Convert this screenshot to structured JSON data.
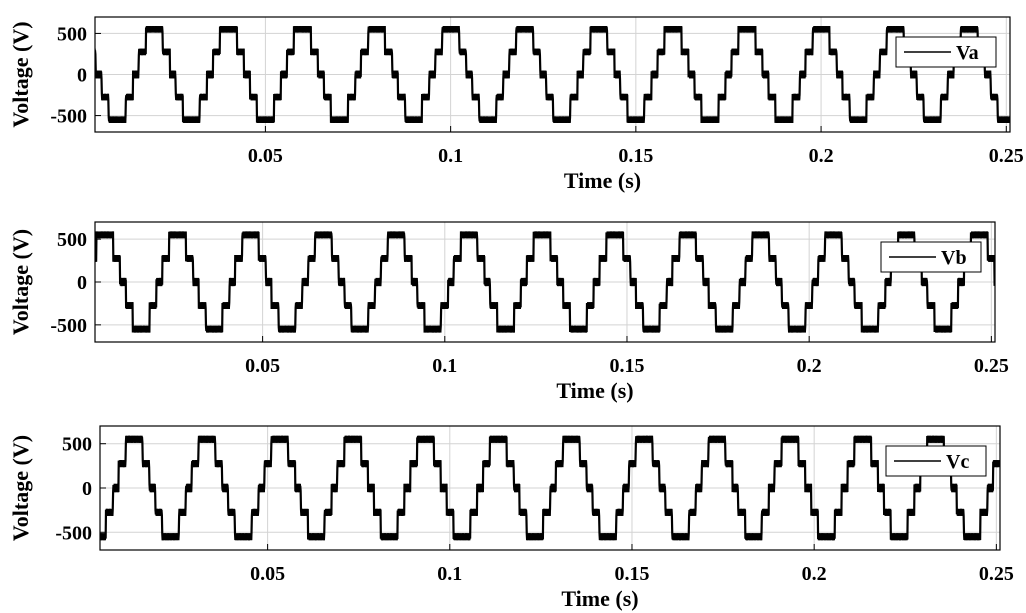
{
  "chart_data": [
    {
      "type": "line",
      "xlabel": "Time (s)",
      "ylabel": "Voltage (V)",
      "xlim": [
        0.004,
        0.251
      ],
      "ylim": [
        -700,
        700
      ],
      "xticks": [
        0.05,
        0.1,
        0.15,
        0.2,
        0.25
      ],
      "xtick_labels": [
        "0.05",
        "0.1",
        "0.15",
        "0.2",
        "0.25"
      ],
      "yticks": [
        500,
        0,
        -500
      ],
      "ytick_labels": [
        "500",
        "0",
        "-500"
      ],
      "grid": true,
      "legend": "top-right",
      "waveform": {
        "fundamental_hz": 50,
        "phase_deg": 90,
        "levels_v": [
          0,
          275,
          550
        ],
        "switching_band_v": 80
      },
      "series": [
        {
          "name": "Va",
          "color": "#000000"
        }
      ]
    },
    {
      "type": "line",
      "xlabel": "Time (s)",
      "ylabel": "Voltage (V)",
      "xlim": [
        0.004,
        0.251
      ],
      "ylim": [
        -700,
        700
      ],
      "xticks": [
        0.05,
        0.1,
        0.15,
        0.2,
        0.25
      ],
      "xtick_labels": [
        "0.05",
        "0.1",
        "0.15",
        "0.2",
        "0.25"
      ],
      "yticks": [
        500,
        0,
        -500
      ],
      "ytick_labels": [
        "500",
        "0",
        "-500"
      ],
      "grid": true,
      "legend": "top-right",
      "waveform": {
        "fundamental_hz": 50,
        "phase_deg": -30,
        "levels_v": [
          0,
          275,
          550
        ],
        "switching_band_v": 80
      },
      "series": [
        {
          "name": "Vb",
          "color": "#000000"
        }
      ]
    },
    {
      "type": "line",
      "xlabel": "Time (s)",
      "ylabel": "Voltage (V)",
      "xlim": [
        0.004,
        0.251
      ],
      "ylim": [
        -700,
        700
      ],
      "xticks": [
        0.05,
        0.1,
        0.15,
        0.2,
        0.25
      ],
      "xtick_labels": [
        "0.05",
        "0.1",
        "0.15",
        "0.2",
        "0.25"
      ],
      "yticks": [
        500,
        0,
        -500
      ],
      "ytick_labels": [
        "500",
        "0",
        "-500"
      ],
      "grid": true,
      "legend": "top-right",
      "waveform": {
        "fundamental_hz": 50,
        "phase_deg": 210,
        "levels_v": [
          0,
          275,
          550
        ],
        "switching_band_v": 80
      },
      "series": [
        {
          "name": "Vc",
          "color": "#000000"
        }
      ]
    }
  ]
}
